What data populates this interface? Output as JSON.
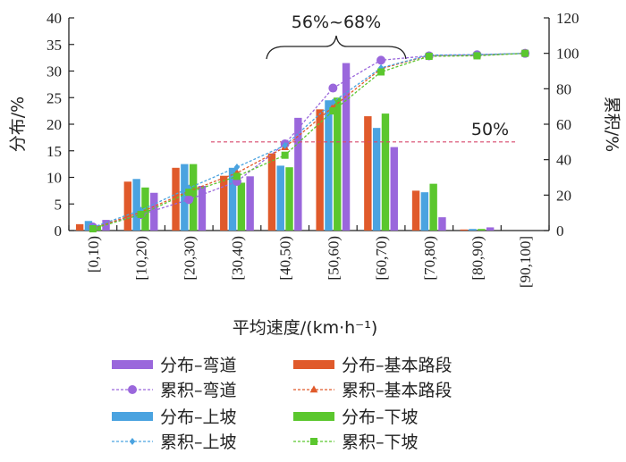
{
  "chart_data": {
    "type": "bar",
    "categories": [
      "[0,10)",
      "[10,20)",
      "[20,30)",
      "[30,40)",
      "[40,50)",
      "[50,60)",
      "[60,70)",
      "[70,80)",
      "[80,90)",
      "[90,100]"
    ],
    "xlabel": "平均速度/(km·h⁻¹)",
    "ylabel_left": "分布/%",
    "ylabel_right": "累积/%",
    "ylim_left": [
      0,
      40
    ],
    "ylim_right": [
      0,
      120
    ],
    "yticks_left": [
      "0",
      "5",
      "10",
      "15",
      "20",
      "25",
      "30",
      "35",
      "40"
    ],
    "yticks_right": [
      "0",
      "20",
      "40",
      "60",
      "80",
      "100",
      "120"
    ],
    "bar_series": [
      {
        "name": "分布–基本路段",
        "color": "#e05a2b",
        "values": [
          1.2,
          9.2,
          11.8,
          10.3,
          14.5,
          22.8,
          21.5,
          7.5,
          0.2,
          0.0
        ]
      },
      {
        "name": "分布–上坡",
        "color": "#4aa3e0",
        "values": [
          1.8,
          9.7,
          12.5,
          11.8,
          12.2,
          24.5,
          19.3,
          7.2,
          0.3,
          0.0
        ]
      },
      {
        "name": "分布–下坡",
        "color": "#5bc72e",
        "values": [
          1.0,
          8.1,
          12.5,
          9.0,
          11.9,
          25.0,
          22.0,
          8.8,
          0.3,
          0.0
        ]
      },
      {
        "name": "分布–弯道",
        "color": "#9a67dc",
        "values": [
          2.0,
          7.1,
          8.4,
          10.2,
          21.2,
          31.5,
          15.7,
          2.5,
          0.6,
          0.0
        ]
      }
    ],
    "line_series": [
      {
        "name": "累积–弯道",
        "color": "#9a67dc",
        "marker": "circle",
        "values": [
          2.0,
          9.0,
          17.5,
          27.7,
          48.9,
          80.4,
          96.1,
          98.6,
          99.2,
          100
        ]
      },
      {
        "name": "累积–基本路段",
        "color": "#e05a2b",
        "marker": "triangle",
        "values": [
          1.2,
          10.4,
          22.2,
          32.5,
          47.0,
          69.8,
          91.3,
          98.8,
          99.0,
          100
        ]
      },
      {
        "name": "累积–上坡",
        "color": "#4aa3e0",
        "marker": "diamond",
        "values": [
          1.8,
          11.5,
          24.0,
          35.8,
          48.0,
          72.5,
          91.8,
          99.0,
          99.3,
          100
        ]
      },
      {
        "name": "累积–下坡",
        "color": "#5bc72e",
        "marker": "square",
        "values": [
          1.0,
          9.1,
          21.6,
          30.6,
          42.5,
          67.5,
          89.5,
          98.3,
          98.6,
          100
        ]
      }
    ],
    "reference_line": {
      "label": "50%",
      "value": 50,
      "color": "#d9486c"
    },
    "bracket_annotation": {
      "label": "56%~68%"
    },
    "legend": [
      {
        "name": "分布–弯道",
        "kind": "bar",
        "color": "#9a67dc"
      },
      {
        "name": "分布–基本路段",
        "kind": "bar",
        "color": "#e05a2b"
      },
      {
        "name": "累积–弯道",
        "kind": "line",
        "marker": "circle",
        "color": "#9a67dc"
      },
      {
        "name": "累积–基本路段",
        "kind": "line",
        "marker": "triangle",
        "color": "#e05a2b"
      },
      {
        "name": "分布–上坡",
        "kind": "bar",
        "color": "#4aa3e0"
      },
      {
        "name": "分布–下坡",
        "kind": "bar",
        "color": "#5bc72e"
      },
      {
        "name": "累积–上坡",
        "kind": "line",
        "marker": "diamond",
        "color": "#4aa3e0"
      },
      {
        "name": "累积–下坡",
        "kind": "line",
        "marker": "square",
        "color": "#5bc72e"
      }
    ]
  }
}
